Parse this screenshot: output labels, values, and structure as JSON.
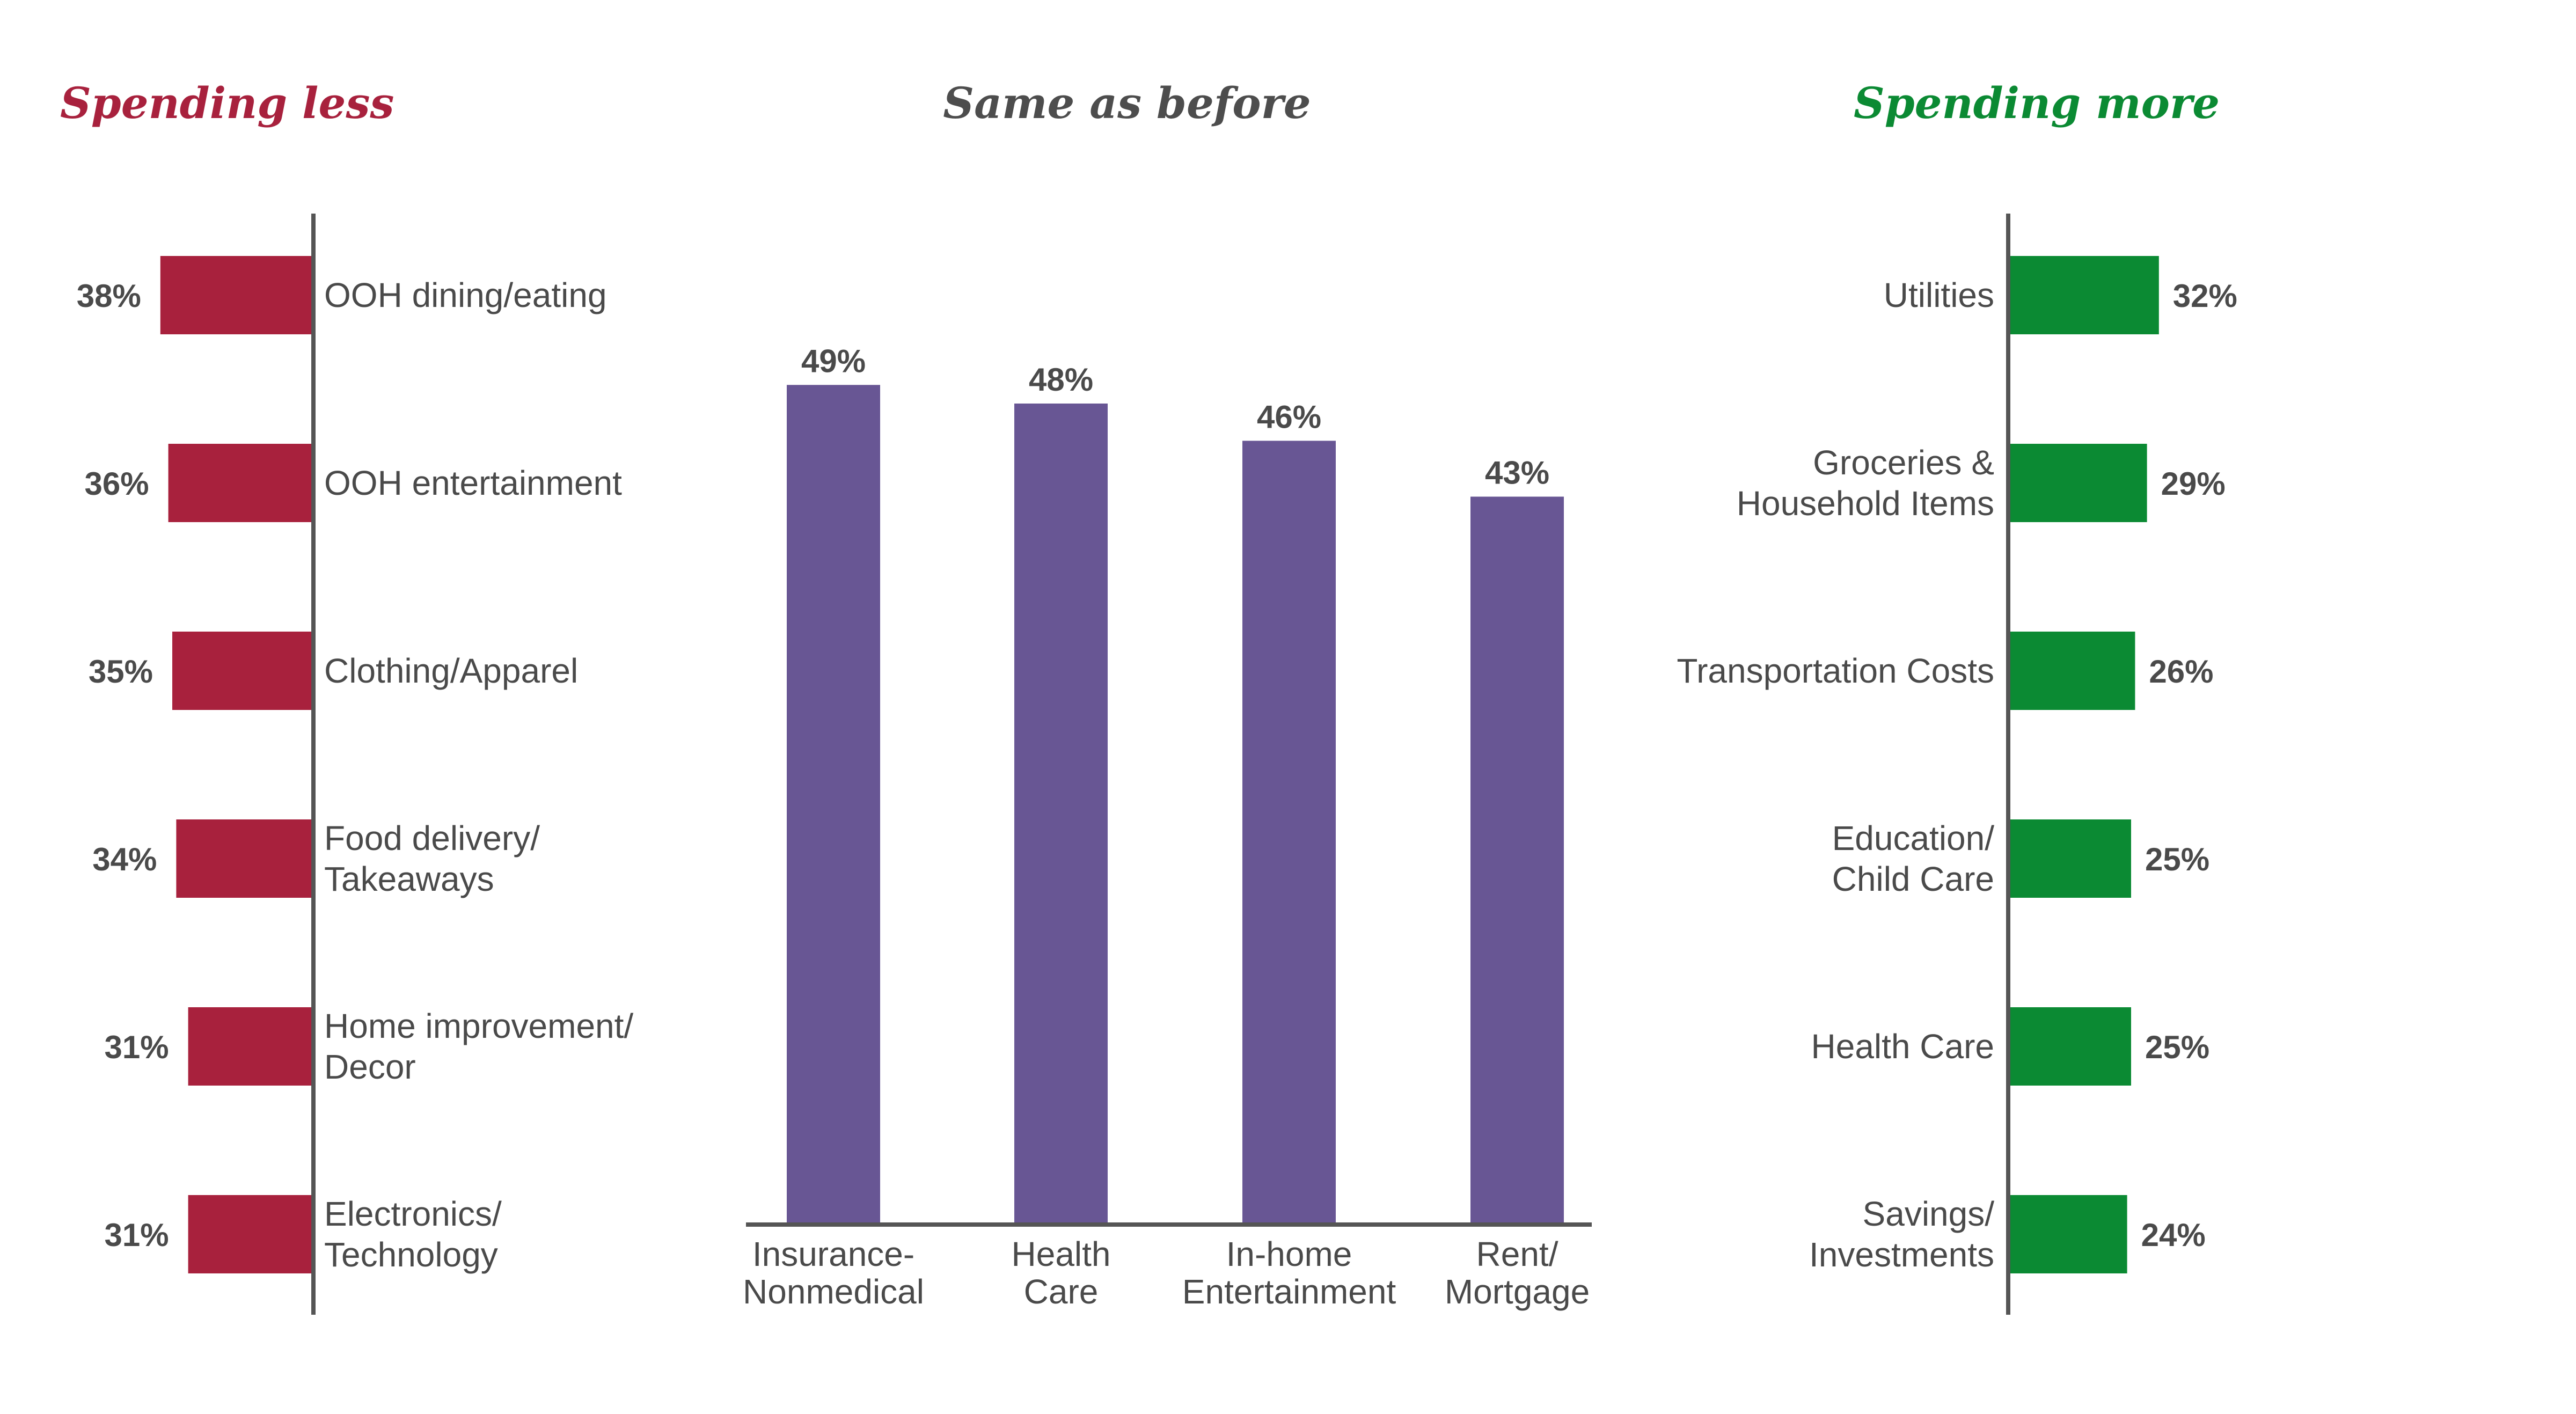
{
  "colors": {
    "less": "#a8213d",
    "same": "#685694",
    "more": "#0b8a33",
    "heading_same": "#4d4d4d",
    "axis": "#555555",
    "text": "#4a4a4a"
  },
  "chart_data": [
    {
      "type": "bar",
      "orientation": "horizontal",
      "direction": "leftward",
      "title": "Spending less",
      "categories": [
        [
          "OOH dining/eating"
        ],
        [
          "OOH entertainment"
        ],
        [
          "Clothing/Apparel"
        ],
        [
          "Food delivery/",
          "Takeaways"
        ],
        [
          "Home improvement/",
          "Decor"
        ],
        [
          "Electronics/",
          "Technology"
        ]
      ],
      "values": [
        38,
        36,
        35,
        34,
        31,
        31
      ],
      "value_labels": [
        "38%",
        "36%",
        "35%",
        "34%",
        "31%",
        "31%"
      ],
      "unit": "%",
      "grid": false
    },
    {
      "type": "bar",
      "orientation": "vertical",
      "title": "Same as before",
      "categories": [
        [
          "Insurance-",
          "Nonmedical"
        ],
        [
          "Health",
          "Care"
        ],
        [
          "In-home",
          "Entertainment"
        ],
        [
          "Rent/",
          "Mortgage"
        ]
      ],
      "values": [
        49,
        48,
        46,
        43
      ],
      "value_labels": [
        "49%",
        "48%",
        "46%",
        "43%"
      ],
      "unit": "%",
      "grid": false
    },
    {
      "type": "bar",
      "orientation": "horizontal",
      "direction": "rightward",
      "title": "Spending more",
      "categories": [
        [
          "Utilities"
        ],
        [
          "Groceries &",
          "Household Items"
        ],
        [
          "Transportation Costs"
        ],
        [
          "Education/",
          "Child Care"
        ],
        [
          "Health Care"
        ],
        [
          "Savings/",
          "Investments"
        ]
      ],
      "values": [
        32,
        29,
        26,
        25,
        25,
        24
      ],
      "value_labels": [
        "32%",
        "29%",
        "26%",
        "25%",
        "25%",
        "24%"
      ],
      "unit": "%",
      "grid": false
    }
  ]
}
